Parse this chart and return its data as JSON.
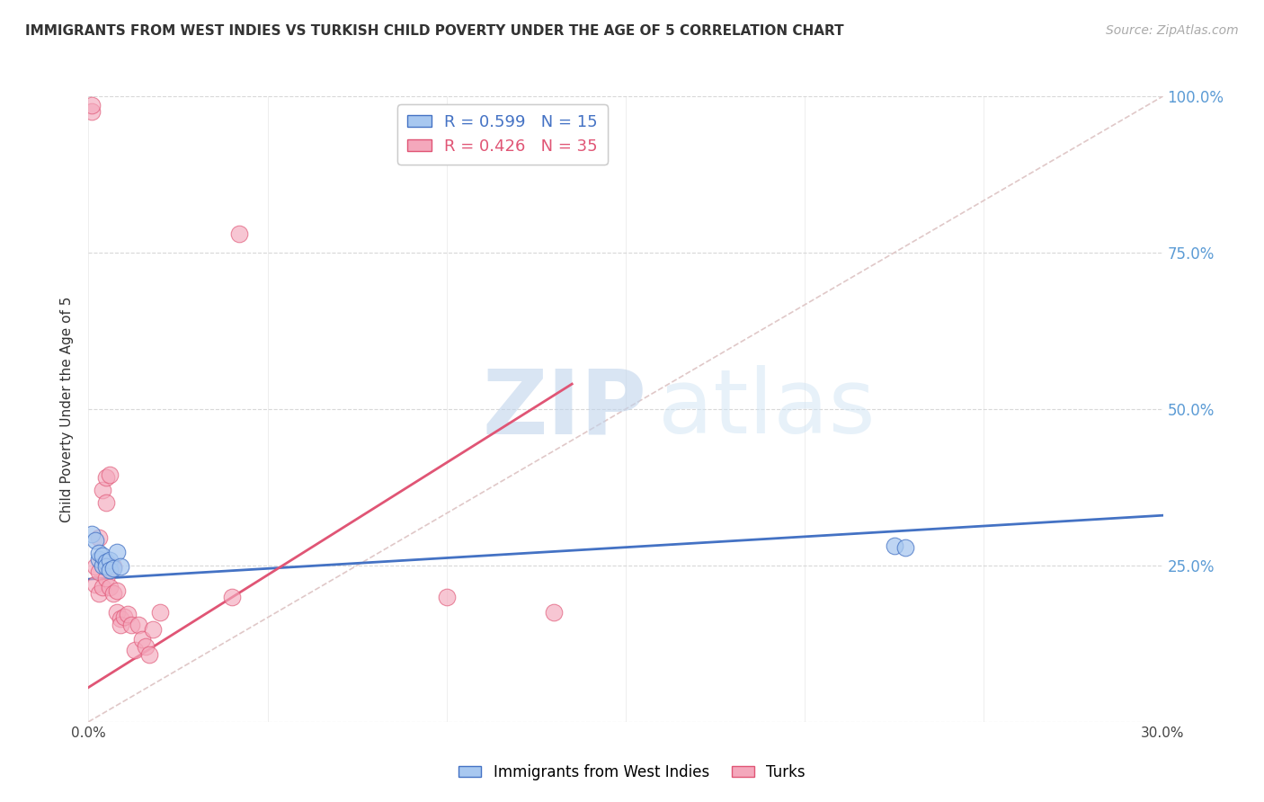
{
  "title": "IMMIGRANTS FROM WEST INDIES VS TURKISH CHILD POVERTY UNDER THE AGE OF 5 CORRELATION CHART",
  "source": "Source: ZipAtlas.com",
  "ylabel": "Child Poverty Under the Age of 5",
  "xlim": [
    0,
    0.3
  ],
  "ylim": [
    0,
    1.0
  ],
  "xticks": [
    0.0,
    0.05,
    0.1,
    0.15,
    0.2,
    0.25,
    0.3
  ],
  "blue_R": 0.599,
  "blue_N": 15,
  "pink_R": 0.426,
  "pink_N": 35,
  "blue_color": "#A8C8F0",
  "pink_color": "#F4A8BC",
  "blue_line_color": "#4472C4",
  "pink_line_color": "#E05575",
  "legend_label_blue": "Immigrants from West Indies",
  "legend_label_pink": "Turks",
  "watermark_zip": "ZIP",
  "watermark_atlas": "atlas",
  "blue_points_x": [
    0.001,
    0.002,
    0.003,
    0.003,
    0.004,
    0.004,
    0.005,
    0.005,
    0.006,
    0.006,
    0.007,
    0.008,
    0.009,
    0.225,
    0.228
  ],
  "blue_points_y": [
    0.3,
    0.29,
    0.26,
    0.27,
    0.25,
    0.265,
    0.255,
    0.248,
    0.258,
    0.242,
    0.245,
    0.272,
    0.248,
    0.282,
    0.278
  ],
  "pink_points_x": [
    0.001,
    0.001,
    0.002,
    0.002,
    0.003,
    0.003,
    0.003,
    0.004,
    0.004,
    0.005,
    0.005,
    0.005,
    0.006,
    0.006,
    0.006,
    0.007,
    0.007,
    0.008,
    0.008,
    0.009,
    0.009,
    0.01,
    0.011,
    0.012,
    0.013,
    0.014,
    0.015,
    0.016,
    0.017,
    0.018,
    0.02,
    0.04,
    0.042,
    0.1,
    0.13
  ],
  "pink_points_y": [
    0.975,
    0.985,
    0.248,
    0.22,
    0.295,
    0.24,
    0.205,
    0.37,
    0.215,
    0.39,
    0.35,
    0.23,
    0.395,
    0.248,
    0.215,
    0.248,
    0.205,
    0.21,
    0.175,
    0.165,
    0.155,
    0.168,
    0.172,
    0.155,
    0.115,
    0.155,
    0.132,
    0.12,
    0.108,
    0.148,
    0.175,
    0.2,
    0.78,
    0.2,
    0.175
  ],
  "blue_line_x": [
    0.0,
    0.3
  ],
  "blue_line_y": [
    0.228,
    0.33
  ],
  "pink_line_x": [
    0.0,
    0.135
  ],
  "pink_line_y": [
    0.055,
    0.54
  ],
  "diag_line_x": [
    0.0,
    0.3
  ],
  "diag_line_y": [
    0.0,
    1.0
  ],
  "yticks": [
    0.0,
    0.25,
    0.5,
    0.75,
    1.0
  ],
  "ytick_labels_right": [
    "",
    "25.0%",
    "50.0%",
    "75.0%",
    "100.0%"
  ]
}
